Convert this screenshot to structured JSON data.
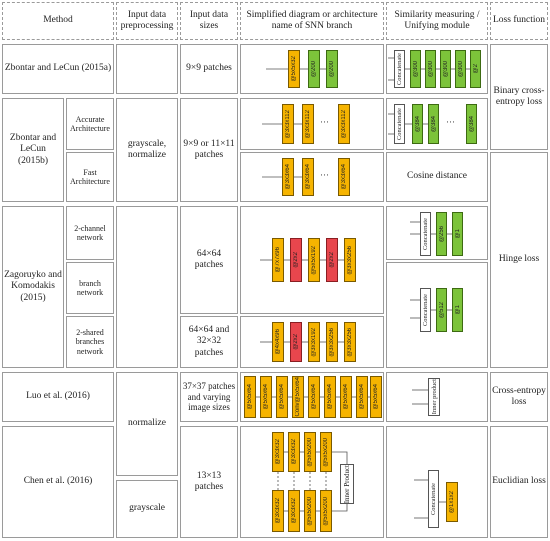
{
  "headers": {
    "method": "Method",
    "preprocessing": "Input data preprocessing",
    "sizes": "Input data sizes",
    "diagram": "Simplified diagram or architecture name of SNN branch",
    "similarity": "Similarity measuring / Unifying module",
    "loss": "Loss function"
  },
  "methods": {
    "zl15a": "Zbontar and LeCun (2015a)",
    "zl15b": "Zbontar and LeCun (2015b)",
    "accurate": "Accurate Architecture",
    "fast": "Fast Architecture",
    "zk15": "Zagoruyko and Komodakis (2015)",
    "two_channel": "2-channel network",
    "branch": "branch network",
    "two_shared": "2-shared branches network",
    "luo16": "Luo et al. (2016)",
    "chen16": "Chen et al. (2016)"
  },
  "preprocessing": {
    "grayscale_normalize": "grayscale, normalize",
    "normalize": "normalize",
    "grayscale": "grayscale"
  },
  "sizes": {
    "s1": "9×9 patches",
    "s2": "9×9 or 11×11 patches",
    "s3": "64×64 patches",
    "s4": "64×64 and 32×32 patches",
    "s5": "37×37 patches and varying image sizes",
    "s6": "13×13 patches"
  },
  "similarity": {
    "cosine": "Cosine distance",
    "concatenate": "Concatenate",
    "inner_product": "Inner product",
    "inner_product_cap": "Inner Product"
  },
  "loss": {
    "bce": "Binary cross-entropy loss",
    "hinge": "Hinge loss",
    "ce": "Cross-entropy loss",
    "euclid": "Euclidian loss"
  },
  "layers": {
    "r1": [
      "@5x5x32",
      "@200",
      "@200"
    ],
    "r1s": [
      "@300",
      "@300",
      "@300",
      "@300",
      "@2"
    ],
    "r2": [
      "@3x3x112",
      "@3x3x112",
      "@3x3x112"
    ],
    "r2s": [
      "@384",
      "@384",
      "@384"
    ],
    "r3": [
      "@3x3x64",
      "@3x3x64",
      "@3x3x64"
    ],
    "r4": [
      "@7x7x96",
      "@2x2",
      "@5x5x192",
      "@2x2",
      "@3x3x256"
    ],
    "r4s": [
      "@256",
      "@1"
    ],
    "r5s": [
      "@512",
      "@1"
    ],
    "r6": [
      "@4x4x96",
      "@2x2",
      "@3x3x192",
      "@3x3x256",
      "@3x3x256"
    ],
    "r7": [
      "@5x5x64",
      "@5x5x64",
      "@5x5x64",
      "@5x5x64",
      "@5x5x64",
      "@5x5x64",
      "@5x5x64",
      "@5x5x64",
      "@5x5x64"
    ],
    "r7c": "Conv",
    "r8a": [
      "@3x3x32",
      "@3x3x32",
      "@5x5x200",
      "@5x5x200"
    ],
    "r8b": [
      "@3x3x32",
      "@3x3x32",
      "@5x5x200",
      "@5x5x200"
    ],
    "r8s": [
      "@1x1x2"
    ]
  },
  "colors": {
    "conv": "#f6b400",
    "fc": "#7cc33a",
    "pool": "#e8464d"
  }
}
